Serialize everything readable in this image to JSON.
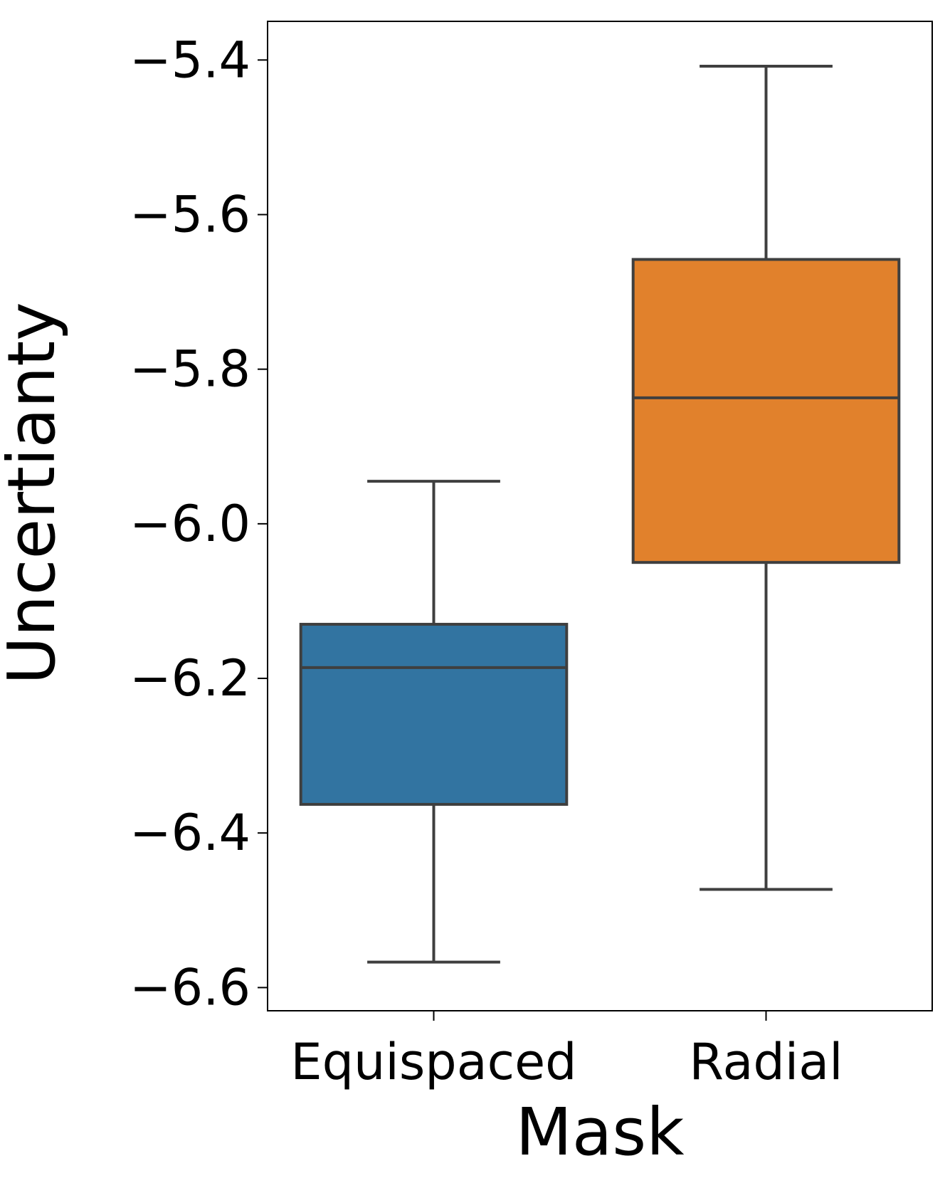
{
  "chart_data": {
    "type": "box",
    "xlabel": "Mask",
    "ylabel": "Uncertianty",
    "categories": [
      "Equispaced",
      "Radial"
    ],
    "ylim": [
      -6.63,
      -5.35
    ],
    "yticks": [
      -5.4,
      -5.6,
      -5.8,
      -6.0,
      -6.2,
      -6.4,
      -6.6
    ],
    "ytick_labels": [
      "−5.4",
      "−5.6",
      "−5.8",
      "−6.0",
      "−6.2",
      "−6.4",
      "−6.6"
    ],
    "grid": false,
    "boxes": [
      {
        "category": "Equispaced",
        "whisker_low": -6.567,
        "q1": -6.363,
        "median": -6.186,
        "q3": -6.13,
        "whisker_high": -5.945,
        "color": "#3274a1"
      },
      {
        "category": "Radial",
        "whisker_low": -6.473,
        "q1": -6.05,
        "median": -5.837,
        "q3": -5.658,
        "whisker_high": -5.408,
        "color": "#e1812c"
      }
    ],
    "line_color": "#3f3f3f"
  }
}
